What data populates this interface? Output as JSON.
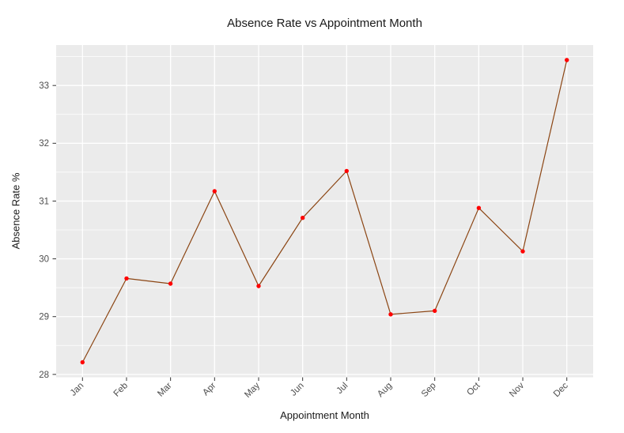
{
  "chart": {
    "title": "Absence Rate vs Appointment Month",
    "xlabel": "Appointment Month",
    "ylabel": "Absence Rate %"
  },
  "chart_data": {
    "type": "line",
    "title": "Absence Rate vs Appointment Month",
    "xlabel": "Appointment Month",
    "ylabel": "Absence Rate %",
    "categories": [
      "Jan",
      "Feb",
      "Mar",
      "Apr",
      "May",
      "Jun",
      "Jul",
      "Aug",
      "Sep",
      "Oct",
      "Nov",
      "Dec"
    ],
    "series": [
      {
        "name": "Absence Rate %",
        "values": [
          28.21,
          29.66,
          29.57,
          31.17,
          29.53,
          30.71,
          31.52,
          29.04,
          29.1,
          30.88,
          30.13,
          33.44
        ]
      }
    ],
    "y_ticks": [
      28,
      29,
      30,
      31,
      32,
      33
    ],
    "y_minor_ticks": [
      28.5,
      29.5,
      30.5,
      31.5,
      32.5,
      33.5
    ],
    "ylim": [
      27.95,
      33.7
    ],
    "grid": "major-and-minor",
    "legend": false,
    "x_tick_angle": -45,
    "colors": {
      "panel_bg": "#EBEBEB",
      "grid_major": "#FFFFFF",
      "grid_minor": "#FFFFFF",
      "line": "#8B4513",
      "point": "#FF0000",
      "axis_text": "#4D4D4D",
      "tick_mark": "#333333",
      "title_text": "#1A1A1A"
    }
  }
}
